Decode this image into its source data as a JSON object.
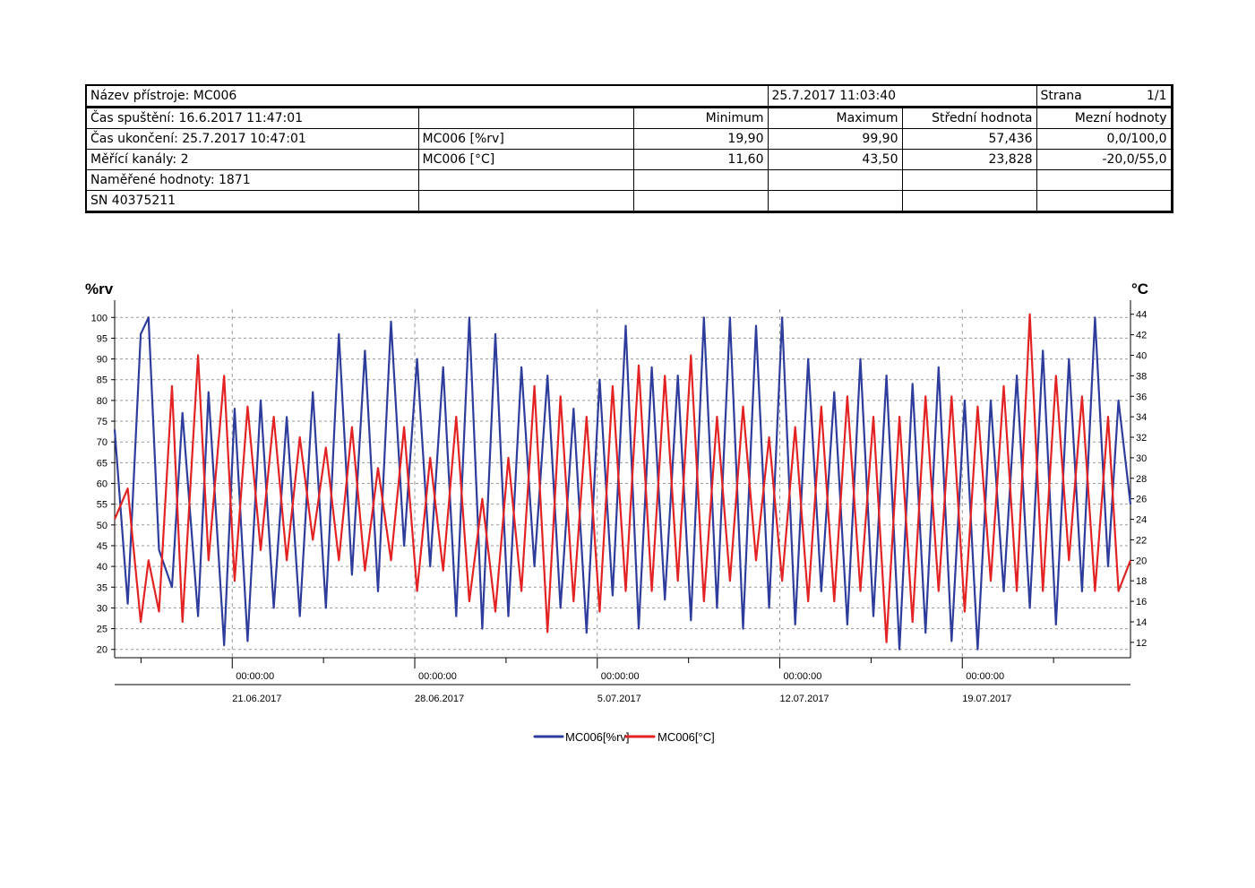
{
  "header": {
    "device_name": "Název přístroje: MC006",
    "printed": "25.7.2017 11:03:40",
    "page_label": "Strana",
    "page_value": "1/1",
    "start": "Čas spuštění: 16.6.2017 11:47:01",
    "end": "Čas ukončení: 25.7.2017 10:47:01",
    "channels": "Měřící kanály: 2",
    "measured": "Naměřené hodnoty: 1871",
    "serial": "SN 40375211"
  },
  "columns": {
    "min": "Minimum",
    "max": "Maximum",
    "mean": "Střední hodnota",
    "limits": "Mezní hodnoty"
  },
  "rows": [
    {
      "channel": "MC006 [%rv]",
      "min": "19,90",
      "max": "99,90",
      "mean": "57,436",
      "limits": "0,0/100,0"
    },
    {
      "channel": "MC006 [°C]",
      "min": "11,60",
      "max": "43,50",
      "mean": "23,828",
      "limits": "-20,0/55,0"
    }
  ],
  "chart_data": {
    "type": "line",
    "title": "",
    "ylabel_left": "%rv",
    "ylabel_right": "°C",
    "ylim_left": [
      18,
      102
    ],
    "ylim_right": [
      10.5,
      44.5
    ],
    "yticks_left": [
      20,
      25,
      30,
      35,
      40,
      45,
      50,
      55,
      60,
      65,
      70,
      75,
      80,
      85,
      90,
      95,
      100
    ],
    "yticks_right": [
      12,
      14,
      16,
      18,
      20,
      22,
      24,
      26,
      28,
      30,
      32,
      34,
      36,
      38,
      40,
      42,
      44
    ],
    "x_range_days": [
      0,
      38.96
    ],
    "x_major_ticks": [
      {
        "day": 4.51,
        "time": "00:00:00",
        "date": "21.06.2017"
      },
      {
        "day": 11.51,
        "time": "00:00:00",
        "date": "28.06.2017"
      },
      {
        "day": 18.51,
        "time": "00:00:00",
        "date": "5.07.2017"
      },
      {
        "day": 25.51,
        "time": "00:00:00",
        "date": "12.07.2017"
      },
      {
        "day": 32.51,
        "time": "00:00:00",
        "date": "19.07.2017"
      }
    ],
    "grid": true,
    "legend_position": "bottom",
    "series": [
      {
        "name": "MC006[%rv]",
        "axis": "left",
        "color": "#2e3d9c",
        "x": [
          0,
          0.5,
          1,
          1.3,
          1.7,
          2.2,
          2.6,
          3.2,
          3.6,
          4.2,
          4.6,
          5.1,
          5.6,
          6.1,
          6.6,
          7.1,
          7.6,
          8.1,
          8.6,
          9.1,
          9.6,
          10.1,
          10.6,
          11.1,
          11.6,
          12.1,
          12.6,
          13.1,
          13.6,
          14.1,
          14.6,
          15.1,
          15.6,
          16.1,
          16.6,
          17.1,
          17.6,
          18.1,
          18.6,
          19.1,
          19.6,
          20.1,
          20.6,
          21.1,
          21.6,
          22.1,
          22.6,
          23.1,
          23.6,
          24.1,
          24.6,
          25.1,
          25.6,
          26.1,
          26.6,
          27.1,
          27.6,
          28.1,
          28.6,
          29.1,
          29.6,
          30.1,
          30.6,
          31.1,
          31.6,
          32.1,
          32.6,
          33.1,
          33.6,
          34.1,
          34.6,
          35.1,
          35.6,
          36.1,
          36.6,
          37.1,
          37.6,
          38.1,
          38.5,
          38.96
        ],
        "y": [
          73,
          31,
          96,
          100,
          44,
          35,
          77,
          28,
          82,
          21,
          78,
          22,
          80,
          30,
          76,
          28,
          82,
          30,
          96,
          38,
          92,
          34,
          99,
          45,
          90,
          40,
          88,
          28,
          100,
          25,
          96,
          28,
          88,
          40,
          86,
          30,
          78,
          24,
          85,
          33,
          98,
          25,
          88,
          32,
          86,
          27,
          100,
          30,
          100,
          25,
          98,
          30,
          100,
          26,
          90,
          34,
          82,
          26,
          90,
          28,
          86,
          20,
          84,
          24,
          88,
          22,
          80,
          20,
          80,
          34,
          86,
          30,
          92,
          26,
          90,
          34,
          100,
          40,
          80,
          55
        ]
      },
      {
        "name": "MC006[°C]",
        "axis": "right",
        "color": "#e32323",
        "x": [
          0,
          0.5,
          1,
          1.3,
          1.7,
          2.2,
          2.6,
          3.2,
          3.6,
          4.2,
          4.6,
          5.1,
          5.6,
          6.1,
          6.6,
          7.1,
          7.6,
          8.1,
          8.6,
          9.1,
          9.6,
          10.1,
          10.6,
          11.1,
          11.6,
          12.1,
          12.6,
          13.1,
          13.6,
          14.1,
          14.6,
          15.1,
          15.6,
          16.1,
          16.6,
          17.1,
          17.6,
          18.1,
          18.6,
          19.1,
          19.6,
          20.1,
          20.6,
          21.1,
          21.6,
          22.1,
          22.6,
          23.1,
          23.6,
          24.1,
          24.6,
          25.1,
          25.6,
          26.1,
          26.6,
          27.1,
          27.6,
          28.1,
          28.6,
          29.1,
          29.6,
          30.1,
          30.6,
          31.1,
          31.6,
          32.1,
          32.6,
          33.1,
          33.6,
          34.1,
          34.6,
          35.1,
          35.6,
          36.1,
          36.6,
          37.1,
          37.6,
          38.1,
          38.5,
          38.96
        ],
        "y": [
          24,
          27,
          14,
          20,
          15,
          37,
          14,
          40,
          20,
          38,
          18,
          35,
          21,
          34,
          20,
          32,
          22,
          31,
          20,
          33,
          19,
          29,
          20,
          33,
          17,
          30,
          19,
          34,
          16,
          26,
          15,
          30,
          17,
          37,
          13,
          36,
          16,
          34,
          15,
          37,
          17,
          39,
          17,
          38,
          18,
          40,
          16,
          34,
          18,
          35,
          20,
          32,
          18,
          33,
          16,
          35,
          16,
          36,
          17,
          34,
          12,
          34,
          14,
          36,
          17,
          36,
          15,
          35,
          18,
          37,
          17,
          44,
          17,
          38,
          20,
          36,
          17,
          34,
          17,
          20
        ]
      }
    ]
  }
}
